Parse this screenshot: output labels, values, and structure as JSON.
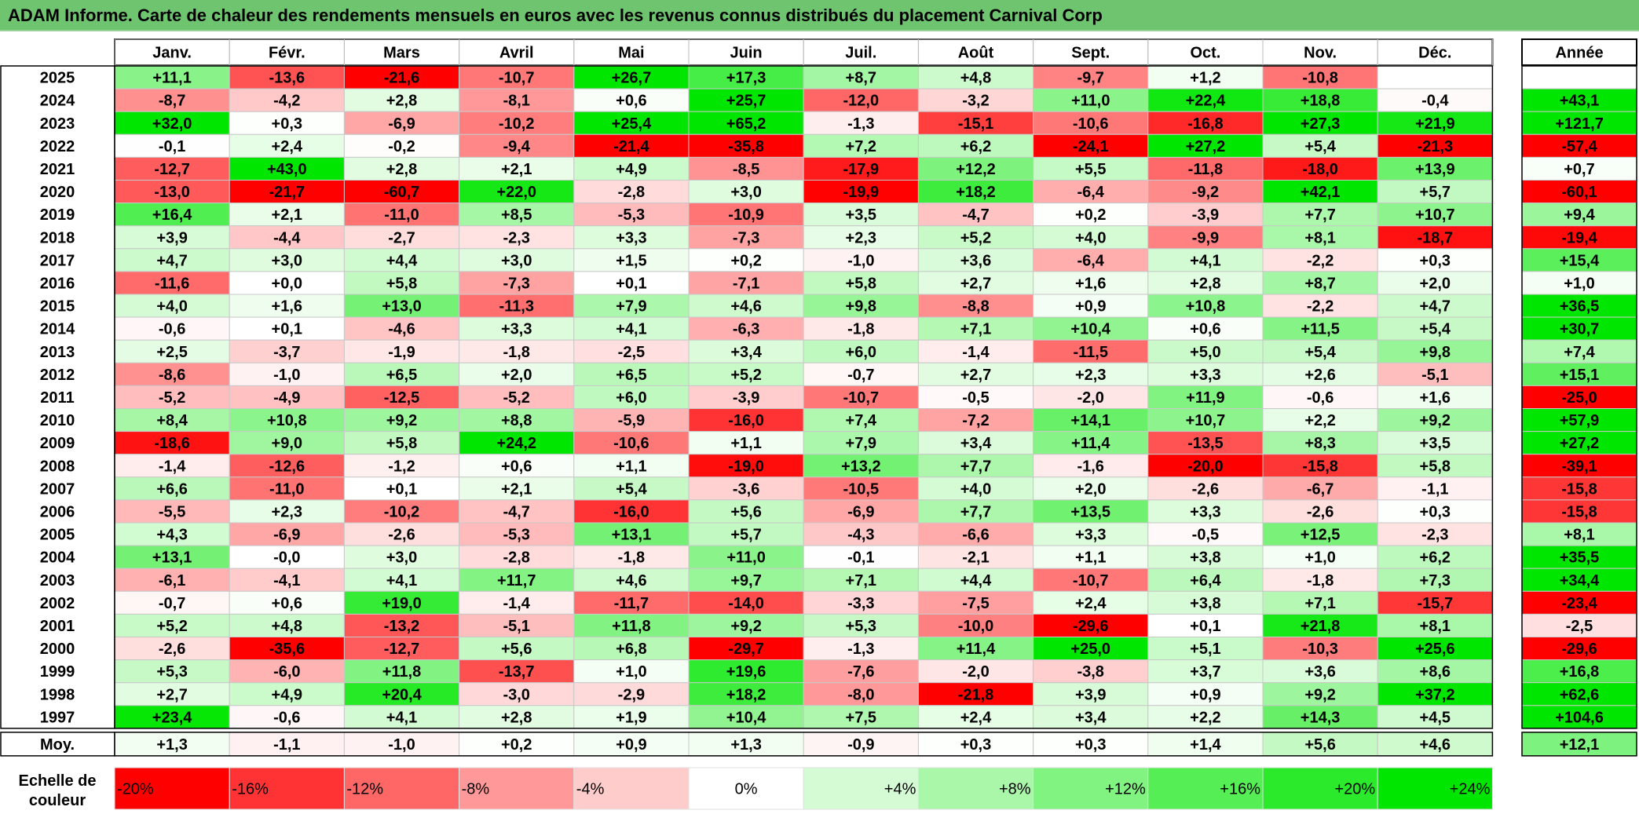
{
  "title": "ADAM Informe. Carte de chaleur des rendements mensuels en euros avec les revenus connus distribués du placement Carnival Corp",
  "chart_data": {
    "type": "heatmap",
    "title": "ADAM Informe. Carte de chaleur des rendements mensuels en euros avec les revenus connus distribués du placement Carnival Corp",
    "months": [
      "Janv.",
      "Févr.",
      "Mars",
      "Avril",
      "Mai",
      "Juin",
      "Juil.",
      "Août",
      "Sept.",
      "Oct.",
      "Nov.",
      "Déc."
    ],
    "year_header": "Année",
    "rows": [
      {
        "year": "2025",
        "values": [
          "+11,1",
          "-13,6",
          "-21,6",
          "-10,7",
          "+26,7",
          "+17,3",
          "+8,7",
          "+4,8",
          "-9,7",
          "+1,2",
          "-10,8",
          ""
        ],
        "annual": ""
      },
      {
        "year": "2024",
        "values": [
          "-8,7",
          "-4,2",
          "+2,8",
          "-8,1",
          "+0,6",
          "+25,7",
          "-12,0",
          "-3,2",
          "+11,0",
          "+22,4",
          "+18,8",
          "-0,4"
        ],
        "annual": "+43,1"
      },
      {
        "year": "2023",
        "values": [
          "+32,0",
          "+0,3",
          "-6,9",
          "-10,2",
          "+25,4",
          "+65,2",
          "-1,3",
          "-15,1",
          "-10,6",
          "-16,8",
          "+27,3",
          "+21,9"
        ],
        "annual": "+121,7"
      },
      {
        "year": "2022",
        "values": [
          "-0,1",
          "+2,4",
          "-0,2",
          "-9,4",
          "-21,4",
          "-35,8",
          "+7,2",
          "+6,2",
          "-24,1",
          "+27,2",
          "+5,4",
          "-21,3"
        ],
        "annual": "-57,4"
      },
      {
        "year": "2021",
        "values": [
          "-12,7",
          "+43,0",
          "+2,8",
          "+2,1",
          "+4,9",
          "-8,5",
          "-17,9",
          "+12,2",
          "+5,5",
          "-11,8",
          "-18,0",
          "+13,9"
        ],
        "annual": "+0,7"
      },
      {
        "year": "2020",
        "values": [
          "-13,0",
          "-21,7",
          "-60,7",
          "+22,0",
          "-2,8",
          "+3,0",
          "-19,9",
          "+18,2",
          "-6,4",
          "-9,2",
          "+42,1",
          "+5,7"
        ],
        "annual": "-60,1"
      },
      {
        "year": "2019",
        "values": [
          "+16,4",
          "+2,1",
          "-11,0",
          "+8,5",
          "-5,3",
          "-10,9",
          "+3,5",
          "-4,7",
          "+0,2",
          "-3,9",
          "+7,7",
          "+10,7"
        ],
        "annual": "+9,4"
      },
      {
        "year": "2018",
        "values": [
          "+3,9",
          "-4,4",
          "-2,7",
          "-2,3",
          "+3,3",
          "-7,3",
          "+2,3",
          "+5,2",
          "+4,0",
          "-9,9",
          "+8,1",
          "-18,7"
        ],
        "annual": "-19,4"
      },
      {
        "year": "2017",
        "values": [
          "+4,7",
          "+3,0",
          "+4,4",
          "+3,0",
          "+1,5",
          "+0,2",
          "-1,0",
          "+3,6",
          "-6,4",
          "+4,1",
          "-2,2",
          "+0,3"
        ],
        "annual": "+15,4"
      },
      {
        "year": "2016",
        "values": [
          "-11,6",
          "+0,0",
          "+5,8",
          "-7,3",
          "+0,1",
          "-7,1",
          "+5,8",
          "+2,7",
          "+1,6",
          "+2,8",
          "+8,7",
          "+2,0"
        ],
        "annual": "+1,0"
      },
      {
        "year": "2015",
        "values": [
          "+4,0",
          "+1,6",
          "+13,0",
          "-11,3",
          "+7,9",
          "+4,6",
          "+9,8",
          "-8,8",
          "+0,9",
          "+10,8",
          "-2,2",
          "+4,7"
        ],
        "annual": "+36,5"
      },
      {
        "year": "2014",
        "values": [
          "-0,6",
          "+0,1",
          "-4,6",
          "+3,3",
          "+4,1",
          "-6,3",
          "-1,8",
          "+7,1",
          "+10,4",
          "+0,6",
          "+11,5",
          "+5,4"
        ],
        "annual": "+30,7"
      },
      {
        "year": "2013",
        "values": [
          "+2,5",
          "-3,7",
          "-1,9",
          "-1,8",
          "-2,5",
          "+3,4",
          "+6,0",
          "-1,4",
          "-11,5",
          "+5,0",
          "+5,4",
          "+9,8"
        ],
        "annual": "+7,4"
      },
      {
        "year": "2012",
        "values": [
          "-8,6",
          "-1,0",
          "+6,5",
          "+2,0",
          "+6,5",
          "+5,2",
          "-0,7",
          "+2,7",
          "+2,3",
          "+3,3",
          "+2,6",
          "-5,1"
        ],
        "annual": "+15,1"
      },
      {
        "year": "2011",
        "values": [
          "-5,2",
          "-4,9",
          "-12,5",
          "-5,2",
          "+6,0",
          "-3,9",
          "-10,7",
          "-0,5",
          "-2,0",
          "+11,9",
          "-0,6",
          "+1,6"
        ],
        "annual": "-25,0"
      },
      {
        "year": "2010",
        "values": [
          "+8,4",
          "+10,8",
          "+9,2",
          "+8,8",
          "-5,9",
          "-16,0",
          "+7,4",
          "-7,2",
          "+14,1",
          "+10,7",
          "+2,2",
          "+9,2"
        ],
        "annual": "+57,9"
      },
      {
        "year": "2009",
        "values": [
          "-18,6",
          "+9,0",
          "+5,8",
          "+24,2",
          "-10,6",
          "+1,1",
          "+7,9",
          "+3,4",
          "+11,4",
          "-13,5",
          "+8,3",
          "+3,5"
        ],
        "annual": "+27,2"
      },
      {
        "year": "2008",
        "values": [
          "-1,4",
          "-12,6",
          "-1,2",
          "+0,6",
          "+1,1",
          "-19,0",
          "+13,2",
          "+7,7",
          "-1,6",
          "-20,0",
          "-15,8",
          "+5,8"
        ],
        "annual": "-39,1"
      },
      {
        "year": "2007",
        "values": [
          "+6,6",
          "-11,0",
          "+0,1",
          "+2,1",
          "+5,4",
          "-3,6",
          "-10,5",
          "+4,0",
          "+2,0",
          "-2,6",
          "-6,7",
          "-1,1"
        ],
        "annual": "-15,8"
      },
      {
        "year": "2006",
        "values": [
          "-5,5",
          "+2,3",
          "-10,2",
          "-4,7",
          "-16,0",
          "+5,6",
          "-6,9",
          "+7,7",
          "+13,5",
          "+3,3",
          "-2,6",
          "+0,3"
        ],
        "annual": "-15,8"
      },
      {
        "year": "2005",
        "values": [
          "+4,3",
          "-6,9",
          "-2,6",
          "-5,3",
          "+13,1",
          "+5,7",
          "-4,3",
          "-6,6",
          "+3,3",
          "-0,5",
          "+12,5",
          "-2,3"
        ],
        "annual": "+8,1"
      },
      {
        "year": "2004",
        "values": [
          "+13,1",
          "-0,0",
          "+3,0",
          "-2,8",
          "-1,8",
          "+11,0",
          "-0,1",
          "-2,1",
          "+1,1",
          "+3,8",
          "+1,0",
          "+6,2"
        ],
        "annual": "+35,5"
      },
      {
        "year": "2003",
        "values": [
          "-6,1",
          "-4,1",
          "+4,1",
          "+11,7",
          "+4,6",
          "+9,7",
          "+7,1",
          "+4,4",
          "-10,7",
          "+6,4",
          "-1,8",
          "+7,3"
        ],
        "annual": "+34,4"
      },
      {
        "year": "2002",
        "values": [
          "-0,7",
          "+0,6",
          "+19,0",
          "-1,4",
          "-11,7",
          "-14,0",
          "-3,3",
          "-7,5",
          "+2,4",
          "+3,8",
          "+7,1",
          "-15,7"
        ],
        "annual": "-23,4"
      },
      {
        "year": "2001",
        "values": [
          "+5,2",
          "+4,8",
          "-13,2",
          "-5,1",
          "+11,8",
          "+9,2",
          "+5,3",
          "-10,0",
          "-29,6",
          "+0,1",
          "+21,8",
          "+8,1"
        ],
        "annual": "-2,5"
      },
      {
        "year": "2000",
        "values": [
          "-2,6",
          "-35,6",
          "-12,7",
          "+5,6",
          "+6,8",
          "-29,7",
          "-1,3",
          "+11,4",
          "+25,0",
          "+5,1",
          "-10,3",
          "+25,6"
        ],
        "annual": "-29,6"
      },
      {
        "year": "1999",
        "values": [
          "+5,3",
          "-6,0",
          "+11,8",
          "-13,7",
          "+1,0",
          "+19,6",
          "-7,6",
          "-2,0",
          "-3,8",
          "+3,7",
          "+3,6",
          "+8,6"
        ],
        "annual": "+16,8"
      },
      {
        "year": "1998",
        "values": [
          "+2,7",
          "+4,9",
          "+20,4",
          "-3,0",
          "-2,9",
          "+18,2",
          "-8,0",
          "-21,8",
          "+3,9",
          "+0,9",
          "+9,2",
          "+37,2"
        ],
        "annual": "+62,6"
      },
      {
        "year": "1997",
        "values": [
          "+23,4",
          "-0,6",
          "+4,1",
          "+2,8",
          "+1,9",
          "+10,4",
          "+7,5",
          "+2,4",
          "+3,4",
          "+2,2",
          "+14,3",
          "+4,5"
        ],
        "annual": "+104,6"
      }
    ],
    "average": {
      "label": "Moy.",
      "values": [
        "+1,3",
        "-1,1",
        "-1,0",
        "+0,2",
        "+0,9",
        "+1,3",
        "-0,9",
        "+0,3",
        "+0,3",
        "+1,4",
        "+5,6",
        "+4,6"
      ],
      "annual": "+12,1"
    },
    "scale": {
      "label_line1": "Echelle de",
      "label_line2": "couleur",
      "steps": [
        "-20%",
        "-16%",
        "-12%",
        "-8%",
        "-4%",
        "0%",
        "+4%",
        "+8%",
        "+12%",
        "+16%",
        "+20%",
        "+24%"
      ]
    },
    "colors": {
      "negative_max": "#ff0000",
      "neutral": "#ffffff",
      "positive_max": "#00e600",
      "title_bar": "#6fc56f"
    }
  }
}
